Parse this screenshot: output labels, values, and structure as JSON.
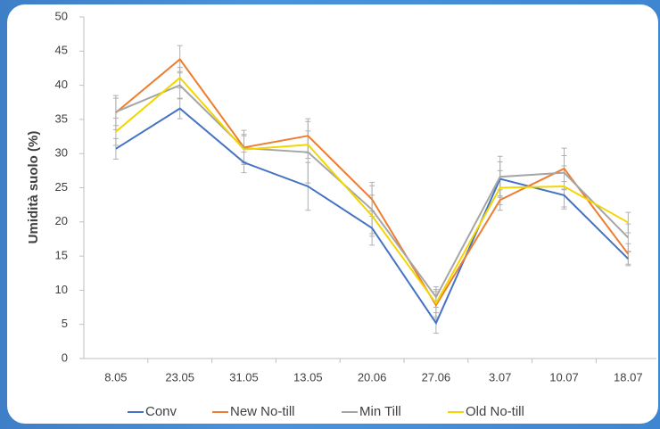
{
  "chart_data": {
    "type": "line",
    "ylabel": "Umidità suolo (%)",
    "categories": [
      "8.05",
      "23.05",
      "31.05",
      "13.05",
      "20.06",
      "27.06",
      "3.07",
      "10.07",
      "18.07"
    ],
    "ylim": [
      0,
      50
    ],
    "yticks": [
      0,
      5,
      10,
      15,
      20,
      25,
      30,
      35,
      40,
      45,
      50
    ],
    "legend": "bottom",
    "series": [
      {
        "name": "Conv",
        "color": "#4472c4",
        "values": [
          30.7,
          36.6,
          28.7,
          25.2,
          19.1,
          5.2,
          26.3,
          23.9,
          14.6
        ],
        "errors": [
          1.5,
          1.5,
          1.5,
          3.5,
          2.5,
          1.5,
          2.5,
          2.0,
          1.0
        ]
      },
      {
        "name": "New No-till",
        "color": "#ed7d31",
        "values": [
          36.0,
          43.8,
          30.9,
          32.6,
          23.3,
          7.8,
          23.2,
          27.8,
          15.3
        ],
        "errors": [
          2.5,
          2.0,
          2.5,
          2.5,
          2.5,
          2.0,
          1.5,
          3.0,
          1.5
        ]
      },
      {
        "name": "Min Till",
        "color": "#a5a5a5",
        "values": [
          36.1,
          40.0,
          30.8,
          30.2,
          21.8,
          9.0,
          26.6,
          27.2,
          17.7
        ],
        "errors": [
          2.0,
          2.0,
          2.0,
          4.5,
          3.5,
          1.5,
          3.0,
          2.5,
          2.0
        ]
      },
      {
        "name": "Old No-till",
        "color": "#f2d600",
        "values": [
          33.2,
          41.1,
          30.6,
          31.3,
          20.9,
          8.1,
          25.0,
          25.2,
          19.9
        ],
        "errors": [
          2.0,
          1.5,
          2.0,
          2.0,
          3.0,
          2.0,
          2.5,
          3.0,
          1.5
        ]
      }
    ]
  }
}
